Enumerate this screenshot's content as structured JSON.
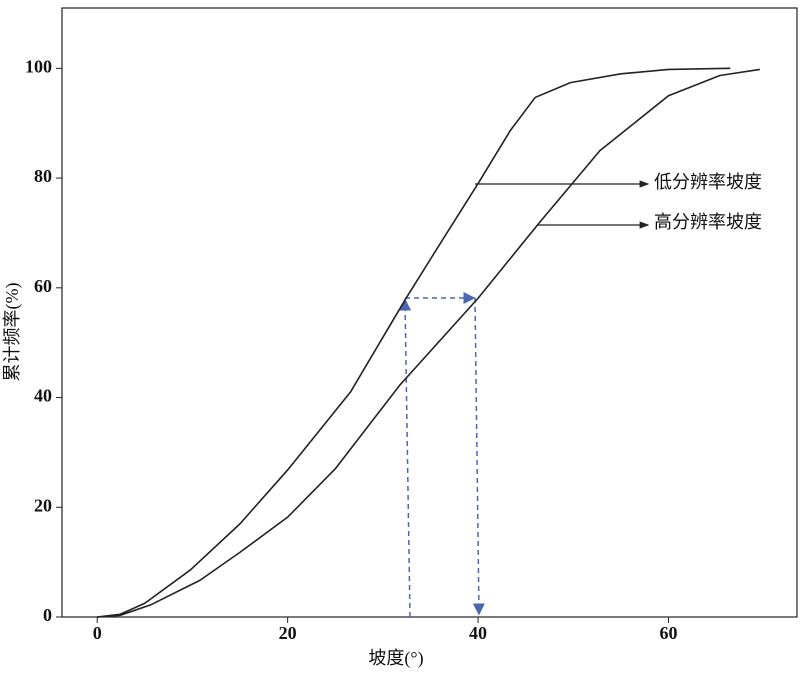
{
  "chart_data": {
    "type": "line",
    "xlabel": "坡度(°)",
    "ylabel": "累计频率(%)",
    "xlim": [
      -3.7,
      73.5
    ],
    "ylim": [
      0,
      111
    ],
    "xticks": [
      0,
      20,
      40,
      60
    ],
    "yticks": [
      0,
      20,
      40,
      60,
      80,
      100
    ],
    "series": [
      {
        "name": "低分辨率坡度",
        "color": "#222222",
        "x": [
          0,
          2.4,
          5,
          9.8,
          15,
          20,
          26.6,
          32.4,
          36,
          40,
          43.4,
          46,
          49.7,
          55,
          60,
          66.5
        ],
        "values": [
          0,
          0.5,
          2.5,
          8.6,
          17,
          26.8,
          41,
          58,
          68,
          79,
          88.7,
          94.7,
          97.4,
          99,
          99.8,
          100
        ]
      },
      {
        "name": "高分辨率坡度",
        "color": "#222222",
        "x": [
          0,
          2.4,
          5.6,
          10.8,
          15,
          20,
          25,
          31.8,
          40,
          46.5,
          52.8,
          60,
          65.4,
          69.6
        ],
        "values": [
          0,
          0.3,
          2.2,
          6.7,
          11.8,
          18.2,
          27,
          42.3,
          58.1,
          72,
          85,
          95,
          98.7,
          99.8
        ]
      }
    ]
  }
}
